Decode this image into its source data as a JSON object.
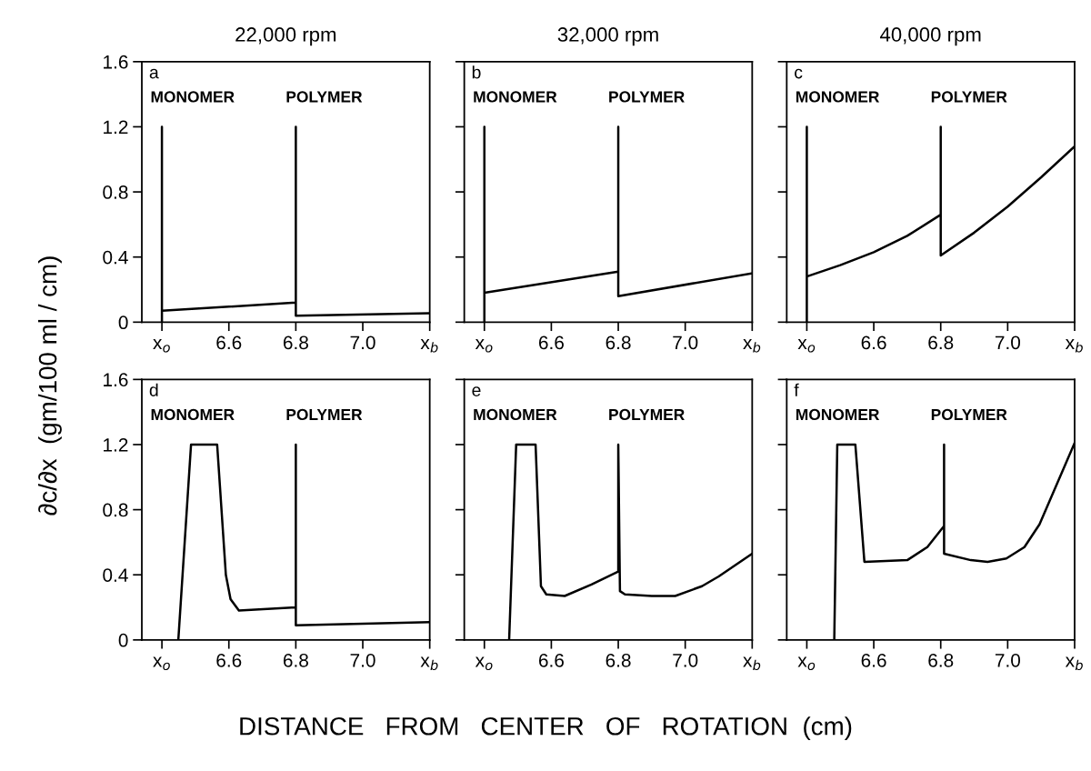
{
  "chart_data": [
    {
      "type": "line",
      "title": "22,000 rpm",
      "ylabel": "∂c/∂x  (gm/100 ml / cm)",
      "xlim": [
        6.34,
        7.2
      ],
      "ylim": [
        0,
        1.6
      ],
      "xticks": [
        {
          "value": 6.4,
          "label": "x$_{o}$"
        },
        {
          "value": 6.6,
          "label": "6.6"
        },
        {
          "value": 6.8,
          "label": "6.8"
        },
        {
          "value": 7.0,
          "label": "7.0"
        },
        {
          "value": 7.2,
          "label": "x$_{b}$"
        }
      ],
      "yticks": [
        0,
        0.4,
        0.8,
        1.2,
        1.6
      ],
      "marker": "none",
      "line_style": "solid",
      "annotations": [
        "a",
        "MONOMER",
        "POLYMER"
      ],
      "series": [
        {
          "color": "#000000",
          "x": [
            6.4,
            6.4,
            6.4,
            6.8,
            6.8,
            6.8,
            7.2
          ],
          "values": [
            0,
            1.2,
            0.07,
            0.12,
            1.2,
            0.04,
            0.055
          ]
        }
      ]
    },
    {
      "type": "line",
      "title": "32,000 rpm",
      "xlim": [
        6.34,
        7.2
      ],
      "ylim": [
        0,
        1.6
      ],
      "tick_labels": "x",
      "xticks": [
        {
          "value": 6.4,
          "label": "x$_{o}$"
        },
        {
          "value": 6.6,
          "label": "6.6"
        },
        {
          "value": 6.8,
          "label": "6.8"
        },
        {
          "value": 7.0,
          "label": "7.0"
        },
        {
          "value": 7.2,
          "label": "x$_{b}$"
        }
      ],
      "yticks": [
        0,
        0.4,
        0.8,
        1.2,
        1.6
      ],
      "marker": "none",
      "line_style": "solid",
      "annotations": [
        "b",
        "MONOMER",
        "POLYMER"
      ],
      "series": [
        {
          "color": "#000000",
          "x": [
            6.4,
            6.4,
            6.4,
            6.8,
            6.8,
            6.8,
            7.2
          ],
          "values": [
            0,
            1.2,
            0.18,
            0.31,
            1.2,
            0.16,
            0.3
          ]
        }
      ]
    },
    {
      "type": "line",
      "title": "40,000 rpm",
      "xlim": [
        6.34,
        7.2
      ],
      "ylim": [
        0,
        1.6
      ],
      "tick_labels": "x",
      "xticks": [
        {
          "value": 6.4,
          "label": "x$_{o}$"
        },
        {
          "value": 6.6,
          "label": "6.6"
        },
        {
          "value": 6.8,
          "label": "6.8"
        },
        {
          "value": 7.0,
          "label": "7.0"
        },
        {
          "value": 7.2,
          "label": "x$_{b}$"
        }
      ],
      "yticks": [
        0,
        0.4,
        0.8,
        1.2,
        1.6
      ],
      "marker": "none",
      "line_style": "solid",
      "annotations": [
        "c",
        "MONOMER",
        "POLYMER"
      ],
      "series": [
        {
          "color": "#000000",
          "x": [
            6.4,
            6.4,
            6.4,
            6.5,
            6.6,
            6.7,
            6.8,
            6.8,
            6.8,
            6.9,
            7.0,
            7.1,
            7.2
          ],
          "values": [
            0,
            1.2,
            0.28,
            0.35,
            0.43,
            0.53,
            0.66,
            1.2,
            0.41,
            0.55,
            0.71,
            0.89,
            1.08
          ]
        }
      ]
    },
    {
      "type": "line",
      "xlim": [
        6.34,
        7.2
      ],
      "ylim": [
        0,
        1.6
      ],
      "xticks": [
        {
          "value": 6.4,
          "label": "x$_{o}$"
        },
        {
          "value": 6.6,
          "label": "6.6"
        },
        {
          "value": 6.8,
          "label": "6.8"
        },
        {
          "value": 7.0,
          "label": "7.0"
        },
        {
          "value": 7.2,
          "label": "x$_{b}$"
        }
      ],
      "yticks": [
        0,
        0.4,
        0.8,
        1.2,
        1.6
      ],
      "marker": "none",
      "line_style": "solid",
      "annotations": [
        "d",
        "MONOMER",
        "POLYMER"
      ],
      "series": [
        {
          "color": "#000000",
          "x": [
            6.449,
            6.487,
            6.565,
            6.591,
            6.605,
            6.63,
            6.8,
            6.8,
            6.8,
            7.2
          ],
          "values": [
            0,
            1.2,
            1.2,
            0.4,
            0.25,
            0.18,
            0.2,
            1.2,
            0.09,
            0.11
          ]
        }
      ]
    },
    {
      "type": "line",
      "xlim": [
        6.34,
        7.2
      ],
      "ylim": [
        0,
        1.6
      ],
      "tick_labels": "x",
      "xlabel": "DISTANCE   FROM   CENTER   OF   ROTATION  (cm)",
      "xticks": [
        {
          "value": 6.4,
          "label": "x$_{o}$"
        },
        {
          "value": 6.6,
          "label": "6.6"
        },
        {
          "value": 6.8,
          "label": "6.8"
        },
        {
          "value": 7.0,
          "label": "7.0"
        },
        {
          "value": 7.2,
          "label": "x$_{b}$"
        }
      ],
      "yticks": [
        0,
        0.4,
        0.8,
        1.2,
        1.6
      ],
      "marker": "none",
      "line_style": "solid",
      "annotations": [
        "e",
        "MONOMER",
        "POLYMER"
      ],
      "series": [
        {
          "color": "#000000",
          "x": [
            6.474,
            6.495,
            6.553,
            6.569,
            6.585,
            6.64,
            6.72,
            6.8,
            6.8,
            6.805,
            6.82,
            6.9,
            6.97,
            7.05,
            7.1,
            7.2
          ],
          "values": [
            0,
            1.2,
            1.2,
            0.33,
            0.28,
            0.27,
            0.34,
            0.42,
            1.2,
            0.3,
            0.28,
            0.27,
            0.27,
            0.33,
            0.39,
            0.53
          ]
        }
      ]
    },
    {
      "type": "line",
      "xlim": [
        6.34,
        7.2
      ],
      "ylim": [
        0,
        1.6
      ],
      "tick_labels": "x",
      "xticks": [
        {
          "value": 6.4,
          "label": "x$_{o}$"
        },
        {
          "value": 6.6,
          "label": "6.6"
        },
        {
          "value": 6.8,
          "label": "6.8"
        },
        {
          "value": 7.0,
          "label": "7.0"
        },
        {
          "value": 7.2,
          "label": "x$_{b}$"
        }
      ],
      "yticks": [
        0,
        0.4,
        0.8,
        1.2,
        1.6
      ],
      "marker": "none",
      "line_style": "solid",
      "annotations": [
        "f",
        "MONOMER",
        "POLYMER"
      ],
      "series": [
        {
          "color": "#000000",
          "x": [
            6.482,
            6.491,
            6.545,
            6.572,
            6.7,
            6.76,
            6.81,
            6.81,
            6.81,
            6.89,
            6.94,
            6.996,
            7.05,
            7.095,
            7.2
          ],
          "values": [
            0,
            1.2,
            1.2,
            0.48,
            0.49,
            0.57,
            0.7,
            1.2,
            0.53,
            0.49,
            0.48,
            0.5,
            0.57,
            0.71,
            1.21
          ]
        }
      ]
    }
  ]
}
